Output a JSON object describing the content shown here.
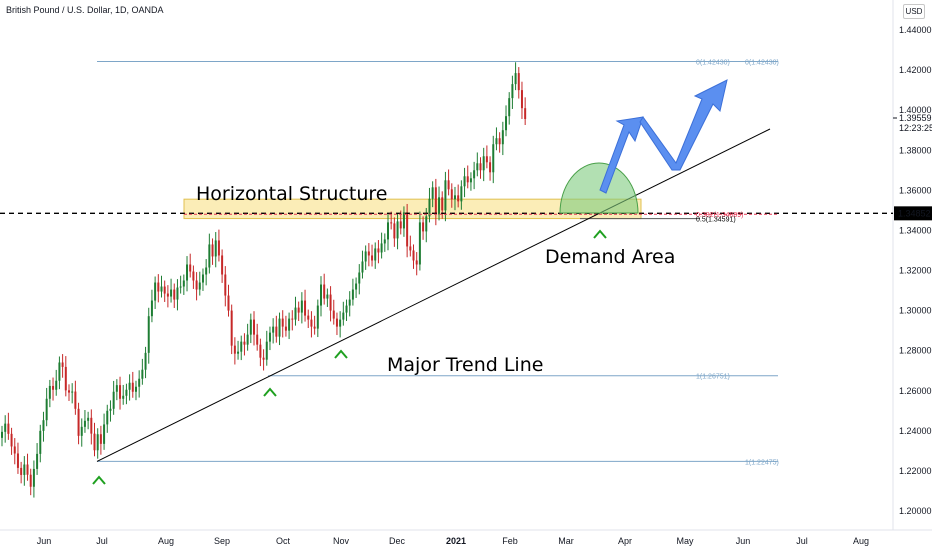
{
  "header": {
    "title": "British Pound / U.S. Dollar, 1D, OANDA",
    "currency": "USD"
  },
  "chart_data": {
    "type": "candlestick",
    "symbol": "British Pound / U.S. Dollar",
    "interval": "1D",
    "source": "OANDA",
    "y_ticks": [
      "1.44000",
      "1.42000",
      "1.40000",
      "1.38000",
      "1.36000",
      "1.34000",
      "1.32000",
      "1.30000",
      "1.28000",
      "1.26000",
      "1.24000",
      "1.22000",
      "1.20000"
    ],
    "x_ticks": [
      "Jun",
      "Jul",
      "Aug",
      "Sep",
      "Oct",
      "Nov",
      "Dec",
      "2021",
      "Feb",
      "Mar",
      "Apr",
      "May",
      "Jun",
      "Jul",
      "Aug"
    ],
    "ylim": [
      1.195,
      1.447
    ],
    "price_line": {
      "value": 1.34852,
      "label": "1.34852"
    },
    "current_price": {
      "value": 1.39559,
      "label": "1.39559",
      "countdown": "12:23:25"
    },
    "levels": [
      {
        "label": "0(1.42430)",
        "value": 1.4243,
        "color": "#7ea6c8"
      },
      {
        "label": "0(1.42430)",
        "value": 1.4243,
        "color": "#7ea6c8"
      },
      {
        "label": "0.5(1.34591)",
        "value": 1.34591,
        "color": "#000000"
      },
      {
        "label": "0.382(1.34809)",
        "value": 1.34809,
        "color": "#e53855"
      },
      {
        "label": "1(1.26751)",
        "value": 1.26751,
        "color": "#7ea6c8"
      },
      {
        "label": "1(1.22475)",
        "value": 1.22475,
        "color": "#7ea6c8"
      }
    ],
    "annotations": {
      "horizontal_structure": "Horizontal Structure",
      "demand_area": "Demand Area",
      "major_trend_line": "Major Trend Line"
    },
    "trend_line": {
      "from": 1.22475,
      "to": 1.39559
    },
    "zone": {
      "low": 1.34591,
      "high": 1.35559,
      "color": "#f9e79f"
    },
    "colors": {
      "up": "#26a69a",
      "down": "#ef5350",
      "candle_up": "#1e7d33",
      "candle_down": "#c62828",
      "arrow": "#5b8ff0",
      "demand": "#7ecb7e",
      "marker": "#1fa020"
    },
    "series": [
      1.2395,
      1.2436,
      1.2385,
      1.2322,
      1.2287,
      1.2215,
      1.218,
      1.2232,
      1.2181,
      1.2121,
      1.221,
      1.2285,
      1.24,
      1.2453,
      1.256,
      1.2624,
      1.2605,
      1.265,
      1.2741,
      1.2719,
      1.2602,
      1.2591,
      1.2596,
      1.251,
      1.2375,
      1.242,
      1.245,
      1.2465,
      1.2386,
      1.2303,
      1.2383,
      1.2335,
      1.2432,
      1.25,
      1.251,
      1.2595,
      1.2628,
      1.256,
      1.2575,
      1.2605,
      1.264,
      1.2595,
      1.262,
      1.266,
      1.2705,
      1.2789,
      1.2972,
      1.305,
      1.314,
      1.3095,
      1.312,
      1.3085,
      1.307,
      1.3105,
      1.3055,
      1.3115,
      1.312,
      1.315,
      1.323,
      1.3195,
      1.315,
      1.3105,
      1.314,
      1.318,
      1.3215,
      1.333,
      1.327,
      1.335,
      1.3275,
      1.318,
      1.3075,
      1.3,
      1.2825,
      1.2785,
      1.2795,
      1.2845,
      1.283,
      1.288,
      1.2955,
      1.288,
      1.283,
      1.2765,
      1.2755,
      1.2845,
      1.289,
      1.292,
      1.287,
      1.296,
      1.292,
      1.29,
      1.296,
      1.2955,
      1.3015,
      1.299,
      1.305,
      1.2975,
      1.2955,
      1.292,
      1.291,
      1.3025,
      1.313,
      1.306,
      1.308,
      1.3,
      1.296,
      1.292,
      1.2955,
      1.299,
      1.3025,
      1.3055,
      1.3105,
      1.3135,
      1.319,
      1.3245,
      1.3295,
      1.3275,
      1.325,
      1.331,
      1.329,
      1.3335,
      1.3355,
      1.344,
      1.3435,
      1.336,
      1.3445,
      1.341,
      1.349,
      1.332,
      1.33,
      1.325,
      1.323,
      1.344,
      1.3395,
      1.347,
      1.3558,
      1.3615,
      1.348,
      1.3565,
      1.35,
      1.365,
      1.3605,
      1.3555,
      1.3575,
      1.3545,
      1.362,
      1.367,
      1.364,
      1.366,
      1.37,
      1.3735,
      1.37,
      1.377,
      1.374,
      1.369,
      1.383,
      1.386,
      1.383,
      1.39,
      1.397,
      1.406,
      1.413,
      1.4185,
      1.41,
      1.401,
      1.3956
    ]
  }
}
